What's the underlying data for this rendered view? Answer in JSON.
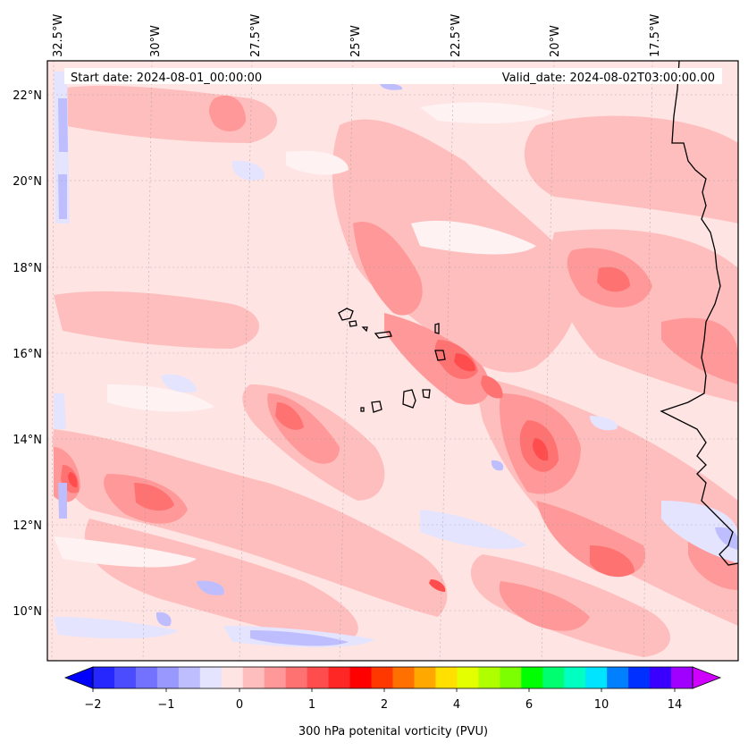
{
  "map": {
    "start_label": "Start date: 2024-08-01_00:00:00",
    "valid_label": "Valid_date: 2024-08-02T03:00:00.00",
    "lon_labels": [
      "32.5°W",
      "30°W",
      "27.5°W",
      "25°W",
      "22.5°W",
      "20°W",
      "17.5°W"
    ],
    "lat_labels": [
      "22°N",
      "20°N",
      "18°N",
      "16°N",
      "14°N",
      "12°N",
      "10°N"
    ],
    "background_color": "#ffe4e4"
  },
  "colorbar": {
    "label": "300 hPa potenital vorticity (PVU)",
    "ticks": [
      "−2",
      "−1",
      "0",
      "1",
      "2",
      "4",
      "6",
      "10",
      "14"
    ],
    "colors": [
      "#0000ff",
      "#2626ff",
      "#4c4cff",
      "#7272ff",
      "#9898ff",
      "#bebeff",
      "#e4e4ff",
      "#ffe4e4",
      "#ffbebe",
      "#ff9898",
      "#ff7272",
      "#ff4c4c",
      "#ff2626",
      "#ff0000",
      "#ff3800",
      "#ff7000",
      "#ffa800",
      "#ffe000",
      "#e4ff00",
      "#b0ff00",
      "#7cff00",
      "#00ff00",
      "#00ff70",
      "#00ffc0",
      "#00e4ff",
      "#0080ff",
      "#0030ff",
      "#3a00ff",
      "#a000ff",
      "#d000ff"
    ]
  }
}
